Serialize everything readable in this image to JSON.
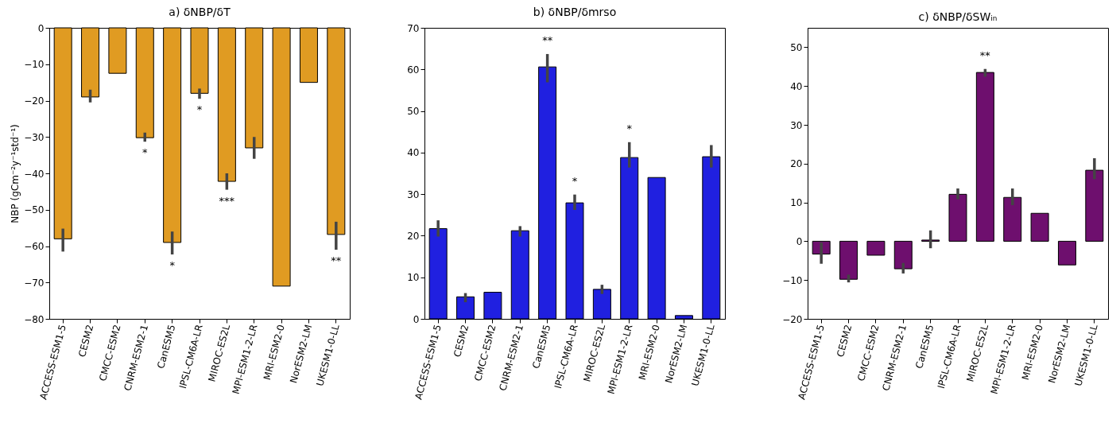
{
  "chart_data": [
    {
      "type": "bar",
      "title": "a) δNBP/δT",
      "ylabel": "NBP (gCm⁻²y⁻¹std⁻¹)",
      "categories": [
        "ACCESS-ESM1-5",
        "CESM2",
        "CMCC-ESM2",
        "CNRM-ESM2-1",
        "CanESM5",
        "IPSL-CM6A-LR",
        "MIROC-ES2L",
        "MPI-ESM1-2-LR",
        "MRI-ESM2-0",
        "NorESM2-LM",
        "UKESM1-0-LL"
      ],
      "values": [
        -58,
        -19,
        -12.5,
        -30.2,
        -59,
        -18,
        -42.2,
        -33,
        -71,
        -15,
        -56.8
      ],
      "color": "#e09b22",
      "errors": [
        [
          -61.5,
          -55.2
        ],
        [
          -20.5,
          -17
        ],
        null,
        [
          -31.3,
          -28.8
        ],
        [
          -62.3,
          -56
        ],
        [
          -19.5,
          -16.7
        ],
        [
          -44.5,
          -40
        ],
        [
          -36,
          -30
        ],
        null,
        null,
        [
          -61,
          -53.3
        ]
      ],
      "ylim": [
        -80,
        0
      ],
      "yticks": [
        -80,
        -70,
        -60,
        -50,
        -40,
        -30,
        -20,
        -10,
        0
      ],
      "annotations": [
        {
          "text": "*",
          "x": "CNRM-ESM2-1",
          "y": -31.3
        },
        {
          "text": "*",
          "x": "CanESM5",
          "y": -62.3
        },
        {
          "text": "*",
          "x": "IPSL-CM6A-LR",
          "y": -19.5
        },
        {
          "text": "***",
          "x": "MIROC-ES2L",
          "y": -44.5
        },
        {
          "text": "**",
          "x": "UKESM1-0-LL",
          "y": -61
        }
      ]
    },
    {
      "type": "bar",
      "title": "b) δNBP/δmrso",
      "categories": [
        "ACCESS-ESM1-5",
        "CESM2",
        "CMCC-ESM2",
        "CNRM-ESM2-1",
        "CanESM5",
        "IPSL-CM6A-LR",
        "MIROC-ES2L",
        "MPI-ESM1-2-LR",
        "MRI-ESM2-0",
        "NorESM2-LM",
        "UKESM1-0-LL"
      ],
      "values": [
        21.7,
        5.3,
        6.4,
        21.2,
        60.6,
        27.9,
        7.1,
        38.8,
        34,
        0.8,
        39
      ],
      "color": "#2020e0",
      "errors": [
        [
          19.8,
          23.7
        ],
        [
          4,
          6.2
        ],
        null,
        [
          19.8,
          22.3
        ],
        [
          56.9,
          63.7
        ],
        [
          26.2,
          29.9
        ],
        [
          6,
          8.2
        ],
        [
          36.4,
          42.5
        ],
        null,
        null,
        [
          36.4,
          41.8
        ]
      ],
      "ylim": [
        0,
        70
      ],
      "yticks": [
        0,
        10,
        20,
        30,
        40,
        50,
        60,
        70
      ],
      "annotations": [
        {
          "text": "**",
          "x": "CanESM5",
          "y": 63.7
        },
        {
          "text": "*",
          "x": "IPSL-CM6A-LR",
          "y": 29.9
        },
        {
          "text": "*",
          "x": "MPI-ESM1-2-LR",
          "y": 42.5
        }
      ]
    },
    {
      "type": "bar",
      "title": "c) δNBP/δSWᵢₙ",
      "categories": [
        "ACCESS-ESM1-5",
        "CESM2",
        "CMCC-ESM2",
        "CNRM-ESM2-1",
        "CanESM5",
        "IPSL-CM6A-LR",
        "MIROC-ES2L",
        "MPI-ESM1-2-LR",
        "MRI-ESM2-0",
        "NorESM2-LM",
        "UKESM1-0-LL"
      ],
      "values": [
        -3.3,
        -9.8,
        -3.6,
        -7.1,
        0.3,
        12.1,
        43.5,
        11.3,
        7.2,
        -6.1,
        18.3
      ],
      "color": "#6e0f6e",
      "errors": [
        [
          -5.8,
          -0.3
        ],
        [
          -10.6,
          -8.6
        ],
        null,
        [
          -8.3,
          -5.6
        ],
        [
          -1.8,
          2.8
        ],
        [
          10.8,
          13.6
        ],
        [
          42.4,
          44.4
        ],
        [
          9.3,
          13.6
        ],
        null,
        null,
        [
          16,
          21.4
        ]
      ],
      "ylim": [
        -20,
        55
      ],
      "yticks": [
        -20,
        -10,
        0,
        10,
        20,
        30,
        40,
        50
      ],
      "annotations": [
        {
          "text": "**",
          "x": "MIROC-ES2L",
          "y": 44.4
        }
      ]
    }
  ]
}
